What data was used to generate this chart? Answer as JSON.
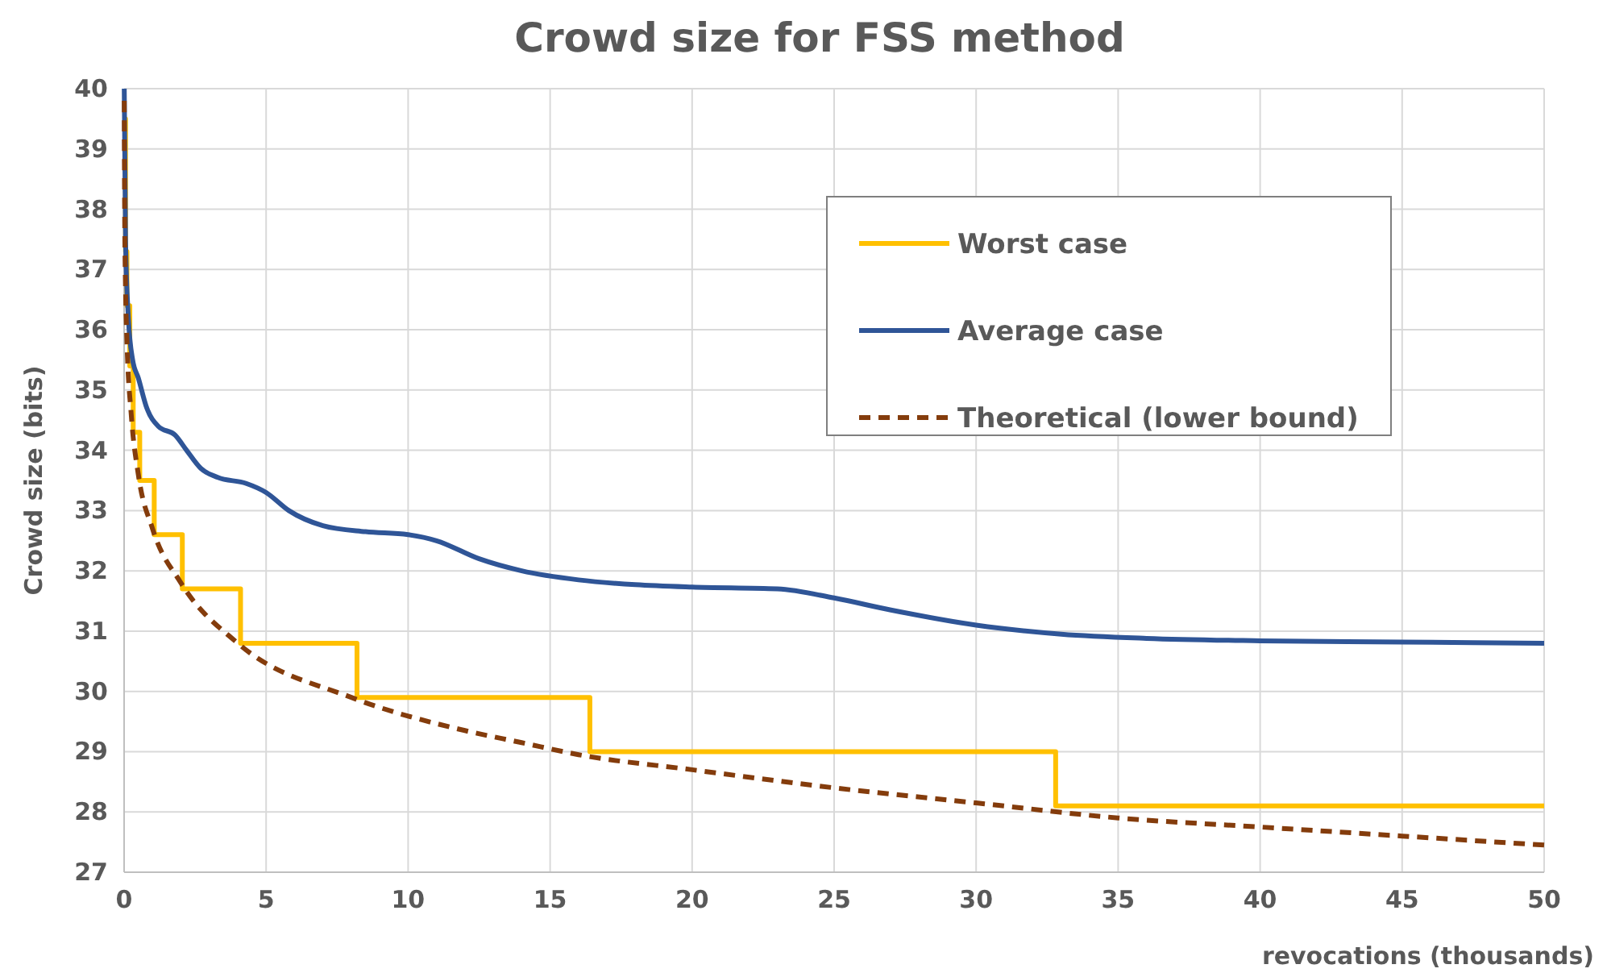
{
  "chart_data": {
    "type": "line",
    "title": "Crowd size for FSS method",
    "xlabel": "revocations (thousands)",
    "ylabel": "Crowd size (bits)",
    "xlim": [
      0,
      50
    ],
    "xticks": [
      0,
      5,
      10,
      15,
      20,
      25,
      30,
      35,
      40,
      45,
      50
    ],
    "ylim": [
      27,
      40
    ],
    "yticks": [
      27,
      28,
      29,
      30,
      31,
      32,
      33,
      34,
      35,
      36,
      37,
      38,
      39,
      40
    ],
    "grid": true,
    "legend": "top right",
    "marker": "none",
    "series": [
      {
        "name": "Worst case",
        "type": "step",
        "color": "#ffc000",
        "line_style": "solid",
        "x": [
          0.01,
          0.05,
          0.1,
          0.2,
          0.32,
          0.55,
          1.06,
          2.05,
          4.1,
          8.2,
          16.4,
          32.8,
          50
        ],
        "values": [
          39.5,
          37.3,
          36.4,
          35.4,
          34.3,
          33.5,
          32.6,
          31.7,
          30.8,
          29.9,
          29.0,
          28.1,
          28.1
        ]
      },
      {
        "name": "Average case",
        "color": "#2f5597",
        "line_style": "solid",
        "x": [
          0.005,
          0.05,
          0.15,
          0.3,
          0.5,
          0.8,
          1.2,
          1.8,
          2.2,
          2.7,
          3.3,
          4.3,
          5,
          5.8,
          7,
          8.5,
          10,
          11,
          12.5,
          14,
          16,
          18,
          20,
          23,
          25,
          27,
          30,
          33,
          36,
          40,
          45,
          50
        ],
        "values": [
          40,
          37.5,
          36.2,
          35.5,
          35.2,
          34.7,
          34.4,
          34.25,
          34.0,
          33.7,
          33.55,
          33.45,
          33.3,
          33.0,
          32.75,
          32.65,
          32.6,
          32.5,
          32.2,
          32.0,
          31.85,
          31.77,
          31.73,
          31.7,
          31.55,
          31.35,
          31.1,
          30.95,
          30.88,
          30.84,
          30.82,
          30.8
        ]
      },
      {
        "name": "Theoretical (lower bound)",
        "color": "#843c0c",
        "line_style": "dashed",
        "x": [
          0.005,
          0.01,
          0.02,
          0.05,
          0.1,
          0.25,
          0.5,
          1,
          2,
          4,
          8,
          12,
          14,
          16,
          20,
          25,
          30,
          35,
          40,
          45,
          50
        ],
        "values": [
          39.8,
          38.9,
          37.9,
          36.7,
          35.8,
          34.6,
          33.6,
          32.7,
          31.8,
          30.8,
          29.9,
          29.35,
          29.15,
          28.95,
          28.7,
          28.4,
          28.15,
          27.9,
          27.75,
          27.6,
          27.45
        ]
      }
    ]
  }
}
